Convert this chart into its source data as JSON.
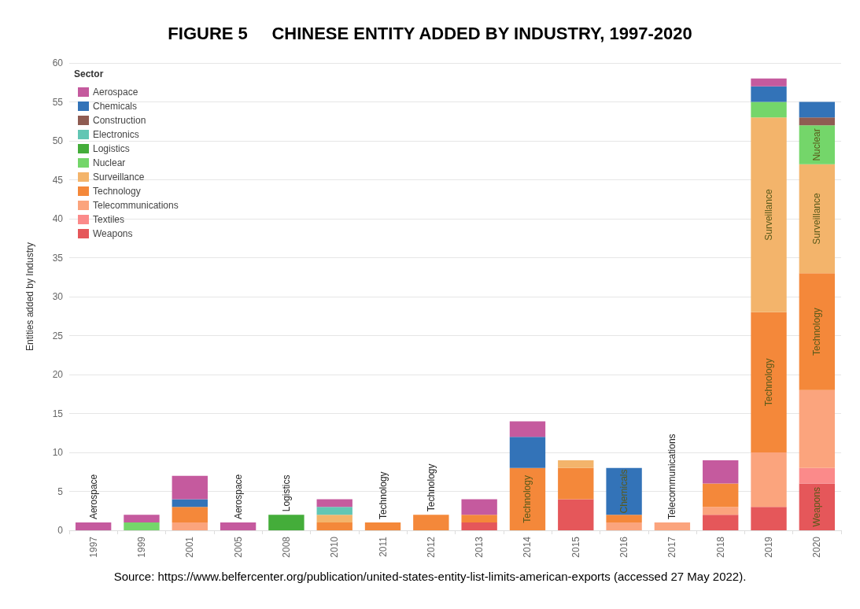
{
  "chart_data": {
    "type": "bar",
    "stacked": true,
    "title": "FIGURE 5     CHINESE ENTITY ADDED BY INDUSTRY, 1997-2020",
    "ylabel": "Entities added by Industry",
    "legend_title": "Sector",
    "categories": [
      "1997",
      "1999",
      "2001",
      "2005",
      "2008",
      "2010",
      "2011",
      "2012",
      "2013",
      "2014",
      "2015",
      "2016",
      "2017",
      "2018",
      "2019",
      "2020"
    ],
    "series": [
      {
        "name": "Weapons",
        "color": "#e5575a",
        "values": [
          0,
          0,
          0,
          0,
          0,
          0,
          0,
          0,
          1,
          0,
          4,
          0,
          0,
          2,
          3,
          6
        ],
        "value_labels": [
          null,
          null,
          null,
          null,
          null,
          null,
          null,
          null,
          null,
          null,
          null,
          null,
          null,
          null,
          null,
          "Weapons"
        ]
      },
      {
        "name": "Textiles",
        "color": "#fb8a8a",
        "values": [
          0,
          0,
          0,
          0,
          0,
          0,
          0,
          0,
          0,
          0,
          0,
          0,
          0,
          0,
          0,
          2
        ]
      },
      {
        "name": "Telecommunications",
        "color": "#fba47d",
        "values": [
          0,
          0,
          1,
          0,
          0,
          0,
          0,
          0,
          0,
          0,
          0,
          1,
          1,
          1,
          7,
          10
        ]
      },
      {
        "name": "Technology",
        "color": "#f4883a",
        "values": [
          0,
          0,
          2,
          0,
          0,
          1,
          1,
          2,
          1,
          8,
          4,
          1,
          0,
          3,
          18,
          15
        ],
        "value_labels": [
          null,
          null,
          null,
          null,
          null,
          null,
          null,
          null,
          null,
          "Technology",
          null,
          null,
          null,
          null,
          "Technology",
          "Technology"
        ]
      },
      {
        "name": "Surveillance",
        "color": "#f3b46b",
        "values": [
          0,
          0,
          0,
          0,
          0,
          1,
          0,
          0,
          0,
          0,
          1,
          0,
          0,
          0,
          25,
          14
        ],
        "value_labels": [
          null,
          null,
          null,
          null,
          null,
          null,
          null,
          null,
          null,
          null,
          null,
          null,
          null,
          null,
          "Surveillance",
          "Surveillance"
        ]
      },
      {
        "name": "Nuclear",
        "color": "#74d66a",
        "values": [
          0,
          1,
          0,
          0,
          0,
          0,
          0,
          0,
          0,
          0,
          0,
          0,
          0,
          0,
          2,
          5
        ],
        "value_labels": [
          null,
          null,
          null,
          null,
          null,
          null,
          null,
          null,
          null,
          null,
          null,
          null,
          null,
          null,
          null,
          "Nuclear"
        ]
      },
      {
        "name": "Logistics",
        "color": "#44ad3a",
        "values": [
          0,
          0,
          0,
          0,
          2,
          0,
          0,
          0,
          0,
          0,
          0,
          0,
          0,
          0,
          0,
          0
        ]
      },
      {
        "name": "Electronics",
        "color": "#62c6b4",
        "values": [
          0,
          0,
          0,
          0,
          0,
          1,
          0,
          0,
          0,
          0,
          0,
          0,
          0,
          0,
          0,
          0
        ]
      },
      {
        "name": "Construction",
        "color": "#8f5c52",
        "values": [
          0,
          0,
          0,
          0,
          0,
          0,
          0,
          0,
          0,
          0,
          0,
          0,
          0,
          0,
          0,
          1
        ]
      },
      {
        "name": "Chemicals",
        "color": "#3373b8",
        "values": [
          0,
          0,
          1,
          0,
          0,
          0,
          0,
          0,
          0,
          4,
          0,
          6,
          0,
          0,
          2,
          2
        ],
        "value_labels": [
          null,
          null,
          null,
          null,
          null,
          null,
          null,
          null,
          null,
          null,
          null,
          "Chemicals",
          null,
          null,
          null,
          null
        ]
      },
      {
        "name": "Aerospace",
        "color": "#c55a9e",
        "values": [
          1,
          1,
          3,
          1,
          0,
          1,
          0,
          0,
          2,
          2,
          0,
          0,
          0,
          3,
          1,
          0
        ]
      }
    ],
    "ylim": [
      0,
      60
    ],
    "yticks": [
      0,
      5,
      10,
      15,
      20,
      25,
      30,
      35,
      40,
      45,
      50,
      55,
      60
    ],
    "grid": "y",
    "legend": "top left",
    "annotations": [
      {
        "text": "Aerospace",
        "x": "1997",
        "y": 1
      },
      {
        "text": "Aerospace",
        "x": "2005",
        "y": 1
      },
      {
        "text": "Logistics",
        "x": "2008",
        "y": 2
      },
      {
        "text": "Technology",
        "x": "2011",
        "y": 1
      },
      {
        "text": "Technology",
        "x": "2012",
        "y": 2
      },
      {
        "text": "Telecommunications",
        "x": "2017",
        "y": 1
      },
      "Source: https://www.belfercenter.org/publication/united-states-entity-list-limits-american-exports (accessed 27 May 2022)."
    ]
  }
}
